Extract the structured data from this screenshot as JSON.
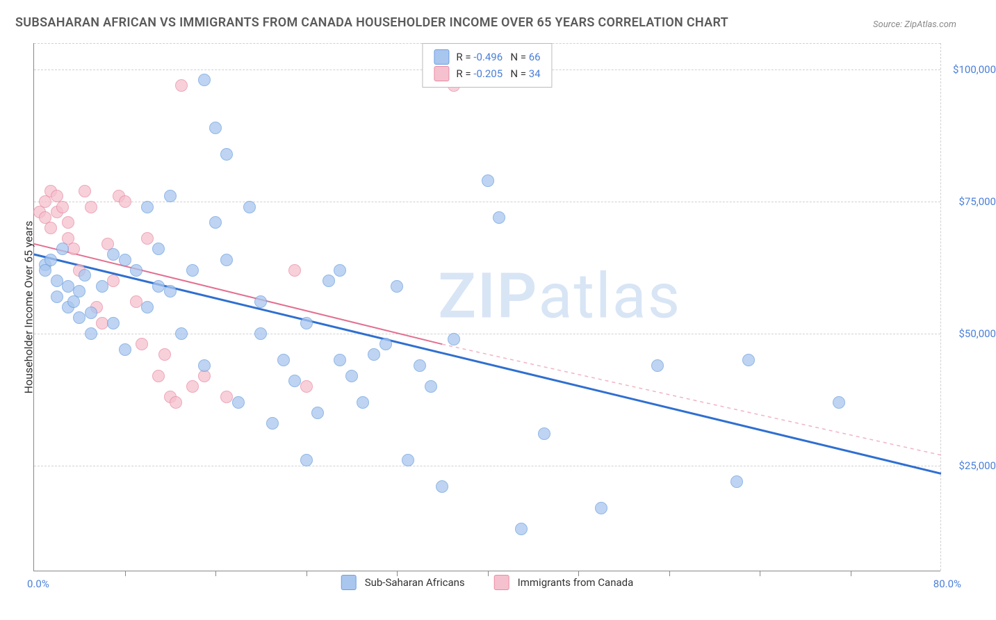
{
  "title": "SUBSAHARAN AFRICAN VS IMMIGRANTS FROM CANADA HOUSEHOLDER INCOME OVER 65 YEARS CORRELATION CHART",
  "source_label": "Source: ZipAtlas.com",
  "watermark": {
    "part1": "ZIP",
    "part2": "atlas"
  },
  "chart": {
    "type": "scatter",
    "y_axis_label": "Householder Income Over 65 years",
    "xlim": [
      0,
      80
    ],
    "ylim": [
      5000,
      105000
    ],
    "x_tick_step": 8,
    "y_ticks": [
      25000,
      50000,
      75000,
      100000
    ],
    "y_tick_labels": [
      "$25,000",
      "$50,000",
      "$75,000",
      "$100,000"
    ],
    "x_min_label": "0.0%",
    "x_max_label": "80.0%",
    "background_color": "#ffffff",
    "grid_color": "#d0d0d0",
    "marker_radius": 9,
    "marker_border_width": 1.5,
    "series": [
      {
        "name": "Sub-Saharan Africans",
        "fill_color": "#a9c6ee",
        "border_color": "#6b9fe0",
        "fill_opacity": 0.75,
        "R": "-0.496",
        "N": "66",
        "trend": {
          "x1": 0,
          "y1": 65000,
          "x2": 80,
          "y2": 23500,
          "color": "#2f6fd0",
          "width": 3,
          "dash": "none"
        },
        "points": [
          [
            1,
            63000
          ],
          [
            1,
            62000
          ],
          [
            1.5,
            64000
          ],
          [
            2,
            60000
          ],
          [
            2,
            57000
          ],
          [
            2.5,
            66000
          ],
          [
            3,
            59000
          ],
          [
            3,
            55000
          ],
          [
            3.5,
            56000
          ],
          [
            4,
            58000
          ],
          [
            4,
            53000
          ],
          [
            4.5,
            61000
          ],
          [
            5,
            50000
          ],
          [
            5,
            54000
          ],
          [
            6,
            59000
          ],
          [
            7,
            52000
          ],
          [
            7,
            65000
          ],
          [
            8,
            47000
          ],
          [
            8,
            64000
          ],
          [
            9,
            62000
          ],
          [
            10,
            55000
          ],
          [
            10,
            74000
          ],
          [
            11,
            59000
          ],
          [
            11,
            66000
          ],
          [
            12,
            58000
          ],
          [
            12,
            76000
          ],
          [
            13,
            50000
          ],
          [
            14,
            62000
          ],
          [
            15,
            44000
          ],
          [
            15,
            98000
          ],
          [
            16,
            89000
          ],
          [
            16,
            71000
          ],
          [
            17,
            64000
          ],
          [
            17,
            84000
          ],
          [
            18,
            37000
          ],
          [
            19,
            74000
          ],
          [
            20,
            56000
          ],
          [
            20,
            50000
          ],
          [
            21,
            33000
          ],
          [
            22,
            45000
          ],
          [
            23,
            41000
          ],
          [
            24,
            52000
          ],
          [
            24,
            26000
          ],
          [
            25,
            35000
          ],
          [
            26,
            60000
          ],
          [
            27,
            45000
          ],
          [
            27,
            62000
          ],
          [
            28,
            42000
          ],
          [
            29,
            37000
          ],
          [
            30,
            46000
          ],
          [
            31,
            48000
          ],
          [
            32,
            59000
          ],
          [
            33,
            26000
          ],
          [
            34,
            44000
          ],
          [
            35,
            40000
          ],
          [
            36,
            21000
          ],
          [
            37,
            49000
          ],
          [
            40,
            79000
          ],
          [
            41,
            72000
          ],
          [
            43,
            13000
          ],
          [
            45,
            31000
          ],
          [
            50,
            17000
          ],
          [
            55,
            44000
          ],
          [
            62,
            22000
          ],
          [
            63,
            45000
          ],
          [
            71,
            37000
          ]
        ]
      },
      {
        "name": "Immigrants from Canada",
        "fill_color": "#f5c1ce",
        "border_color": "#e88ba4",
        "fill_opacity": 0.75,
        "R": "-0.205",
        "N": "34",
        "trend_solid": {
          "x1": 0,
          "y1": 67000,
          "x2": 36,
          "y2": 48000,
          "color": "#e36f90",
          "width": 2
        },
        "trend_dashed": {
          "x1": 36,
          "y1": 48000,
          "x2": 80,
          "y2": 27000,
          "color": "#f0b3c3",
          "width": 1.5,
          "dash": "5,5"
        },
        "points": [
          [
            0.5,
            73000
          ],
          [
            1,
            75000
          ],
          [
            1,
            72000
          ],
          [
            1.5,
            77000
          ],
          [
            1.5,
            70000
          ],
          [
            2,
            76000
          ],
          [
            2,
            73000
          ],
          [
            2.5,
            74000
          ],
          [
            3,
            71000
          ],
          [
            3,
            68000
          ],
          [
            3.5,
            66000
          ],
          [
            4,
            62000
          ],
          [
            4.5,
            77000
          ],
          [
            5,
            74000
          ],
          [
            5.5,
            55000
          ],
          [
            6,
            52000
          ],
          [
            6.5,
            67000
          ],
          [
            7,
            60000
          ],
          [
            7.5,
            76000
          ],
          [
            8,
            75000
          ],
          [
            9,
            56000
          ],
          [
            9.5,
            48000
          ],
          [
            10,
            68000
          ],
          [
            11,
            42000
          ],
          [
            11.5,
            46000
          ],
          [
            12,
            38000
          ],
          [
            12.5,
            37000
          ],
          [
            13,
            97000
          ],
          [
            14,
            40000
          ],
          [
            15,
            42000
          ],
          [
            17,
            38000
          ],
          [
            23,
            62000
          ],
          [
            24,
            40000
          ],
          [
            37,
            97000
          ]
        ]
      }
    ]
  },
  "legend_top": {
    "rows": [
      {
        "swatch_fill": "#a9c6ee",
        "swatch_border": "#6b9fe0",
        "R_label": "R = ",
        "R": "-0.496",
        "N_label": "   N = ",
        "N": "66"
      },
      {
        "swatch_fill": "#f5c1ce",
        "swatch_border": "#e88ba4",
        "R_label": "R = ",
        "R": "-0.205",
        "N_label": "   N = ",
        "N": "34"
      }
    ]
  },
  "legend_bottom": {
    "items": [
      {
        "swatch_fill": "#a9c6ee",
        "swatch_border": "#6b9fe0",
        "label": "Sub-Saharan Africans"
      },
      {
        "swatch_fill": "#f5c1ce",
        "swatch_border": "#e88ba4",
        "label": "Immigrants from Canada"
      }
    ]
  }
}
